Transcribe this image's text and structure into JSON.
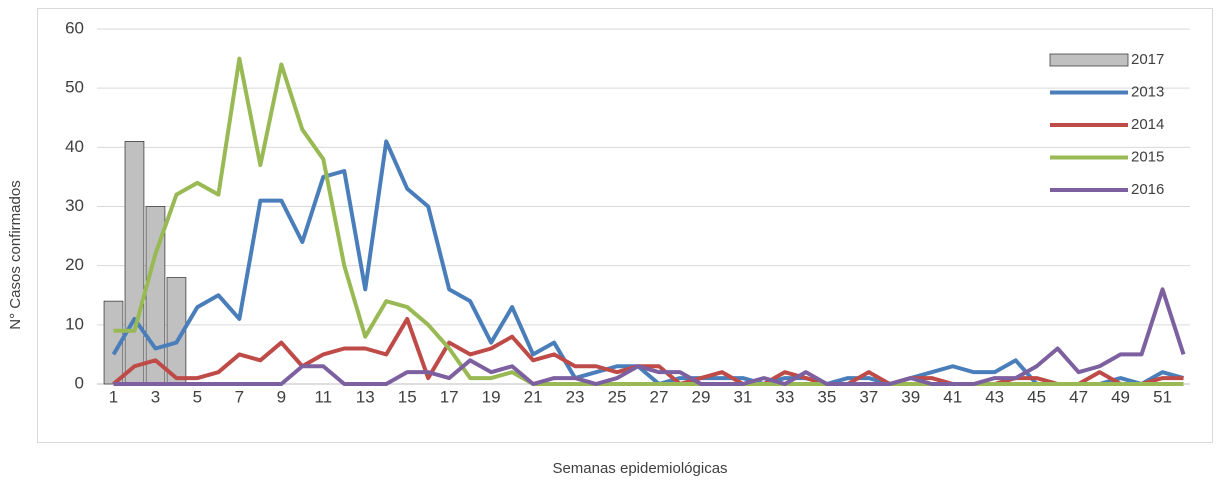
{
  "chart_data": {
    "type": "combo",
    "y_label": "N° Casos confirmados",
    "x_label": "Semanas epidemiológicas",
    "categories": [
      1,
      null,
      3,
      null,
      5,
      null,
      7,
      null,
      9,
      null,
      11,
      null,
      13,
      null,
      15,
      null,
      17,
      null,
      19,
      null,
      21,
      null,
      23,
      null,
      25,
      null,
      27,
      null,
      29,
      null,
      31,
      null,
      33,
      null,
      35,
      null,
      37,
      null,
      39,
      null,
      41,
      null,
      43,
      null,
      45,
      null,
      47,
      null,
      49,
      null,
      51,
      null
    ],
    "ylim": [
      0,
      60
    ],
    "yticks": [
      0,
      10,
      20,
      30,
      40,
      50,
      60
    ],
    "grid": true,
    "legend": "right",
    "series": [
      {
        "name": "2017",
        "type": "bar",
        "color": "#c0c0c0",
        "values": [
          14,
          41,
          30,
          18,
          null,
          null,
          null,
          null,
          null,
          null,
          null,
          null,
          null,
          null,
          null,
          null,
          null,
          null,
          null,
          null,
          null,
          null,
          null,
          null,
          null,
          null,
          null,
          null,
          null,
          null,
          null,
          null,
          null,
          null,
          null,
          null,
          null,
          null,
          null,
          null,
          null,
          null,
          null,
          null,
          null,
          null,
          null,
          null,
          null,
          null,
          null,
          null
        ]
      },
      {
        "name": "2013",
        "type": "line",
        "color": "#4a7ebb",
        "values": [
          5,
          11,
          6,
          7,
          13,
          15,
          11,
          31,
          31,
          24,
          35,
          36,
          16,
          41,
          33,
          30,
          16,
          14,
          7,
          13,
          5,
          7,
          1,
          2,
          3,
          3,
          0,
          1,
          1,
          1,
          1,
          0,
          1,
          1,
          0,
          1,
          1,
          0,
          1,
          2,
          3,
          2,
          2,
          4,
          0,
          0,
          0,
          0,
          1,
          0,
          2,
          1
        ]
      },
      {
        "name": "2014",
        "type": "line",
        "color": "#be4b48",
        "values": [
          0,
          3,
          4,
          1,
          1,
          2,
          5,
          4,
          7,
          3,
          5,
          6,
          6,
          5,
          11,
          1,
          7,
          5,
          6,
          8,
          4,
          5,
          3,
          3,
          2,
          3,
          3,
          0,
          1,
          2,
          0,
          0,
          2,
          1,
          0,
          0,
          2,
          0,
          1,
          1,
          0,
          0,
          0,
          1,
          1,
          0,
          0,
          2,
          0,
          0,
          1,
          1
        ]
      },
      {
        "name": "2015",
        "type": "line",
        "color": "#98b954",
        "values": [
          9,
          9,
          22,
          32,
          34,
          32,
          55,
          37,
          54,
          43,
          38,
          20,
          8,
          14,
          13,
          10,
          6,
          1,
          1,
          2,
          0,
          0,
          0,
          0,
          0,
          0,
          0,
          0,
          0,
          0,
          0,
          0,
          0,
          0,
          0,
          0,
          0,
          0,
          0,
          0,
          0,
          0,
          0,
          0,
          0,
          0,
          0,
          0,
          0,
          0,
          0,
          0
        ]
      },
      {
        "name": "2016",
        "type": "line",
        "color": "#7d60a0",
        "values": [
          0,
          0,
          0,
          0,
          0,
          0,
          0,
          0,
          0,
          3,
          3,
          0,
          0,
          0,
          2,
          2,
          1,
          4,
          2,
          3,
          0,
          1,
          1,
          0,
          1,
          3,
          2,
          2,
          0,
          0,
          0,
          1,
          0,
          2,
          0,
          0,
          0,
          0,
          1,
          0,
          0,
          0,
          1,
          1,
          3,
          6,
          2,
          3,
          5,
          5,
          16,
          5
        ]
      }
    ]
  }
}
